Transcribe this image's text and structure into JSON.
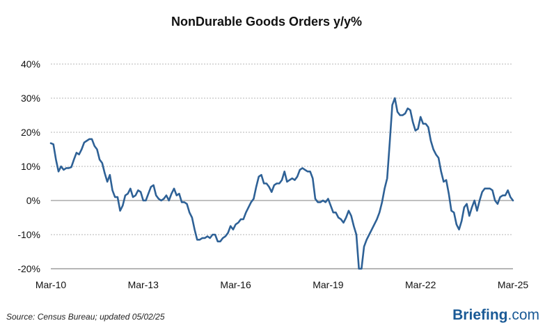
{
  "chart_data": {
    "type": "line",
    "title": "NonDurable Goods Orders y/y%",
    "xlabel": "",
    "ylabel": "",
    "ylim": [
      -20,
      40
    ],
    "y_ticks": [
      {
        "value": 40,
        "label": "40%"
      },
      {
        "value": 30,
        "label": "30%"
      },
      {
        "value": 20,
        "label": "20%"
      },
      {
        "value": 10,
        "label": "10%"
      },
      {
        "value": 0,
        "label": "0%"
      },
      {
        "value": -10,
        "label": "-10%"
      },
      {
        "value": -20,
        "label": "-20%"
      }
    ],
    "x_range": [
      "2010-03",
      "2025-03"
    ],
    "x_ticks": [
      "Mar-10",
      "Mar-13",
      "Mar-16",
      "Mar-19",
      "Mar-22",
      "Mar-25"
    ],
    "grid": "horizontal dashed",
    "legend": "none",
    "colors": {
      "line": "#2e6196",
      "grid": "#b5b5b5",
      "zero_line": "#9a9a9a",
      "axis": "#8a8a8a",
      "negative_label": "#e41b23",
      "brand": "#1a5a96"
    },
    "series": [
      {
        "x": [
          "2010-03",
          "2010-04",
          "2010-05",
          "2010-06",
          "2010-07",
          "2010-08",
          "2010-09",
          "2010-10",
          "2010-11",
          "2010-12",
          "2011-01",
          "2011-02",
          "2011-03",
          "2011-04",
          "2011-05",
          "2011-06",
          "2011-07",
          "2011-08",
          "2011-09",
          "2011-10",
          "2011-11",
          "2011-12",
          "2012-01",
          "2012-02",
          "2012-03",
          "2012-04",
          "2012-05",
          "2012-06",
          "2012-07",
          "2012-08",
          "2012-09",
          "2012-10",
          "2012-11",
          "2012-12",
          "2013-01",
          "2013-02",
          "2013-03",
          "2013-04",
          "2013-05",
          "2013-06",
          "2013-07",
          "2013-08",
          "2013-09",
          "2013-10",
          "2013-11",
          "2013-12",
          "2014-01",
          "2014-02",
          "2014-03",
          "2014-04",
          "2014-05",
          "2014-06",
          "2014-07",
          "2014-08",
          "2014-09",
          "2014-10",
          "2014-11",
          "2014-12",
          "2015-01",
          "2015-02",
          "2015-03",
          "2015-04",
          "2015-05",
          "2015-06",
          "2015-07",
          "2015-08",
          "2015-09",
          "2015-10",
          "2015-11",
          "2015-12",
          "2016-01",
          "2016-02",
          "2016-03",
          "2016-04",
          "2016-05",
          "2016-06",
          "2016-07",
          "2016-08",
          "2016-09",
          "2016-10",
          "2016-11",
          "2016-12",
          "2017-01",
          "2017-02",
          "2017-03",
          "2017-04",
          "2017-05",
          "2017-06",
          "2017-07",
          "2017-08",
          "2017-09",
          "2017-10",
          "2017-11",
          "2017-12",
          "2018-01",
          "2018-02",
          "2018-03",
          "2018-04",
          "2018-05",
          "2018-06",
          "2018-07",
          "2018-08",
          "2018-09",
          "2018-10",
          "2018-11",
          "2018-12",
          "2019-01",
          "2019-02",
          "2019-03",
          "2019-04",
          "2019-05",
          "2019-06",
          "2019-07",
          "2019-08",
          "2019-09",
          "2019-10",
          "2019-11",
          "2019-12",
          "2020-01",
          "2020-02",
          "2020-03",
          "2020-04",
          "2020-05",
          "2020-06",
          "2020-07",
          "2020-08",
          "2020-09",
          "2020-10",
          "2020-11",
          "2020-12",
          "2021-01",
          "2021-02",
          "2021-03",
          "2021-04",
          "2021-05",
          "2021-06",
          "2021-07",
          "2021-08",
          "2021-09",
          "2021-10",
          "2021-11",
          "2021-12",
          "2022-01",
          "2022-02",
          "2022-03",
          "2022-04",
          "2022-05",
          "2022-06",
          "2022-07",
          "2022-08",
          "2022-09",
          "2022-10",
          "2022-11",
          "2022-12",
          "2023-01",
          "2023-02",
          "2023-03",
          "2023-04",
          "2023-05",
          "2023-06",
          "2023-07",
          "2023-08",
          "2023-09",
          "2023-10",
          "2023-11",
          "2023-12",
          "2024-01",
          "2024-02",
          "2024-03",
          "2024-04",
          "2024-05",
          "2024-06",
          "2024-07",
          "2024-08",
          "2024-09",
          "2024-10",
          "2024-11",
          "2024-12",
          "2025-01",
          "2025-02",
          "2025-03"
        ],
        "y": [
          16.8,
          16.5,
          12.0,
          8.5,
          10.0,
          9.0,
          9.5,
          9.5,
          9.8,
          12.0,
          14.0,
          13.5,
          15.0,
          17.0,
          17.5,
          18.0,
          18.0,
          16.0,
          15.0,
          12.0,
          11.0,
          8.0,
          5.5,
          7.5,
          3.0,
          1.0,
          1.0,
          -3.0,
          -1.5,
          1.5,
          2.0,
          3.5,
          1.0,
          1.5,
          3.0,
          2.5,
          0.0,
          0.0,
          2.0,
          4.0,
          4.5,
          1.5,
          0.5,
          0.0,
          0.5,
          1.5,
          0.0,
          2.0,
          3.5,
          1.5,
          2.0,
          -0.5,
          -0.5,
          -1.0,
          -3.5,
          -5.0,
          -8.5,
          -11.5,
          -11.5,
          -11.0,
          -11.0,
          -10.5,
          -11.0,
          -10.0,
          -10.0,
          -12.0,
          -12.0,
          -11.0,
          -10.5,
          -9.5,
          -7.5,
          -8.5,
          -7.0,
          -6.5,
          -5.5,
          -5.5,
          -3.5,
          -2.0,
          -0.5,
          0.5,
          4.0,
          7.0,
          7.5,
          5.0,
          5.0,
          4.0,
          2.5,
          4.5,
          5.0,
          5.0,
          6.0,
          8.5,
          5.5,
          6.0,
          6.5,
          6.0,
          7.0,
          9.0,
          9.5,
          9.0,
          8.5,
          8.5,
          6.5,
          0.5,
          -0.5,
          -0.5,
          0.0,
          -0.5,
          0.5,
          -1.5,
          -3.5,
          -3.5,
          -5.0,
          -5.5,
          -6.5,
          -5.0,
          -3.0,
          -4.5,
          -7.5,
          -10.0,
          -20.0,
          -20.0,
          -13.5,
          -11.5,
          -10.0,
          -8.5,
          -7.0,
          -5.5,
          -3.5,
          -0.5,
          3.5,
          6.5,
          17.0,
          28.0,
          30.0,
          26.0,
          25.0,
          25.0,
          25.5,
          27.0,
          26.5,
          23.0,
          20.5,
          21.0,
          24.5,
          22.5,
          22.5,
          21.5,
          17.5,
          15.0,
          13.5,
          12.5,
          8.5,
          5.5,
          6.0,
          2.0,
          -3.0,
          -3.5,
          -7.0,
          -8.5,
          -6.0,
          -2.0,
          -1.0,
          -4.5,
          -2.0,
          0.0,
          -3.0,
          0.0,
          2.5,
          3.5,
          3.5,
          3.5,
          3.0,
          0.0,
          -1.0,
          1.0,
          1.5,
          1.5,
          3.0,
          1.0,
          0.0
        ]
      }
    ]
  },
  "footer": {
    "source": "Source:  Census Bureau; updated  05/02/25",
    "brand_main": "Briefing",
    "brand_tld": ".com"
  }
}
